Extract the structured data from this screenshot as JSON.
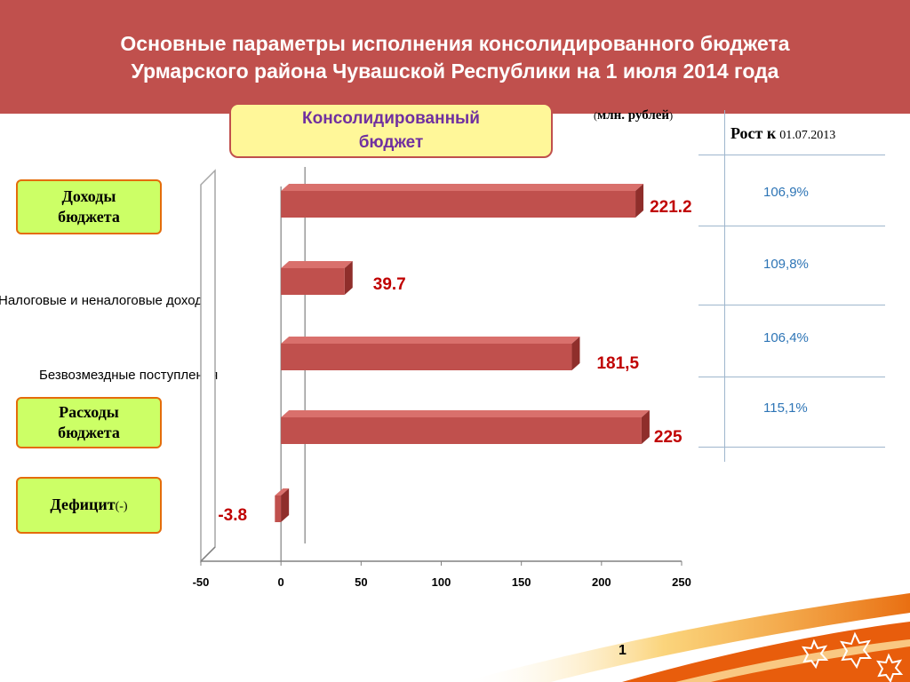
{
  "slide": {
    "title_line1": "Основные параметры исполнения консолидированного бюджета",
    "title_line2": "Урмарского района  Чувашской Республики на 1 июля 2014 года",
    "budget_box_line1": "Консолидированный",
    "budget_box_line2": "бюджет",
    "units_open": "(",
    "units_text": "млн. рублей",
    "units_close": ")",
    "growth_header_bold": "Рост к",
    "growth_header_date": "01.07.2013",
    "page_number": "1",
    "colors": {
      "header": "#c0504d",
      "bar": "#c0504d",
      "bar_top": "#d9706c",
      "bar_side": "#8f2e2b",
      "value_text": "#c00000",
      "growth_text": "#2e75b6",
      "label_box_fill": "#ccff66",
      "label_box_border": "#e46c0a",
      "budget_box_fill": "#fff799",
      "budget_box_text": "#7030a0"
    }
  },
  "labels": {
    "income": [
      "Доходы",
      "бюджета"
    ],
    "expenses": [
      "Расходы",
      "бюджета"
    ],
    "deficit": "Дефицит",
    "deficit_suffix": "(-)"
  },
  "category_text": {
    "tax": "Налоговые и неналоговые доходы",
    "gratuitous": "Безвозмездные поступления"
  },
  "growth": {
    "values": [
      "106,9%",
      "109,8%",
      "106,4%",
      "115,1%"
    ]
  },
  "chart_data": {
    "type": "bar",
    "orientation": "horizontal",
    "style": "3d",
    "categories": [
      "Доходы бюджета",
      "Налоговые и неналоговые доходы",
      "Безвозмездные поступления",
      "Расходы бюджета",
      "Дефицит (-)"
    ],
    "values": [
      221.2,
      39.7,
      181.5,
      225,
      -3.8
    ],
    "value_labels": [
      "221.2",
      "39.7",
      "181,5",
      "225",
      "-3.8"
    ],
    "xlim": [
      -50,
      250
    ],
    "x_ticks": [
      -50,
      0,
      50,
      100,
      150,
      200,
      250
    ],
    "x_tick_labels": [
      "-50",
      "0",
      "50",
      "100",
      "150",
      "200",
      "250"
    ],
    "title": "",
    "xlabel": "",
    "ylabel": "",
    "grid": false,
    "legend": "none"
  }
}
